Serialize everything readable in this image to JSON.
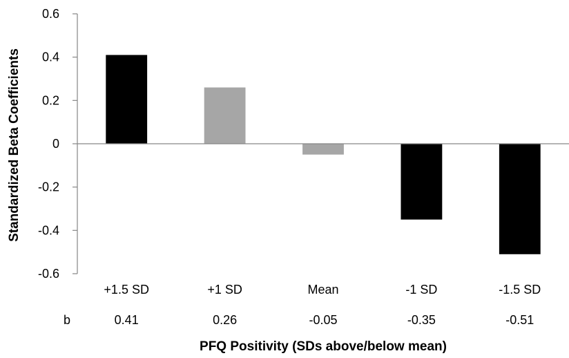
{
  "chart_data": {
    "type": "bar",
    "title": "",
    "xlabel": "PFQ Positivity (SDs above/below mean)",
    "ylabel": "Standardized Beta Coefficients",
    "ylim": [
      -0.6,
      0.6
    ],
    "ytick_step": 0.2,
    "yticks": [
      "0.6",
      "0.4",
      "0.2",
      "0",
      "-0.2",
      "-0.4",
      "-0.6"
    ],
    "categories": [
      "+1.5 SD",
      "+1 SD",
      "Mean",
      "-1 SD",
      "-1.5 SD"
    ],
    "values": [
      0.41,
      0.26,
      -0.05,
      -0.35,
      -0.51
    ],
    "b_row": {
      "label": "b",
      "values": [
        "0.41",
        "0.26",
        "-0.05",
        "-0.35",
        "-0.51"
      ]
    },
    "bar_colors": [
      "#000000",
      "#a6a6a6",
      "#a6a6a6",
      "#000000",
      "#000000"
    ],
    "grid": false,
    "legend": "none"
  }
}
